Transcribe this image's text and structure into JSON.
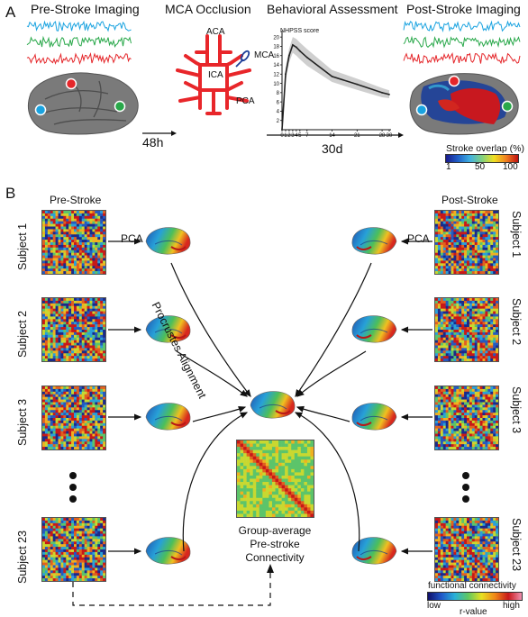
{
  "panel_a": {
    "letter": "A",
    "pre_title": "Pre-Stroke Imaging",
    "mca_title": "MCA Occlusion",
    "behav_title": "Behavioral Assessment",
    "post_title": "Post-Stroke Imaging",
    "delay_48h": "48h",
    "delay_30d": "30d",
    "vessels": {
      "aca": "ACA",
      "mca": "MCA",
      "ica": "ICA",
      "pca": "PCA"
    },
    "legend": {
      "title": "Stroke overlap (%)",
      "min": "1",
      "mid": "50",
      "max": "100"
    },
    "trace_colors": [
      "#1aa3e0",
      "#29a84a",
      "#e5262a"
    ]
  },
  "chart_data": {
    "type": "line",
    "ylabel": "NHPSS score",
    "x_ticks": [
      "0",
      "1",
      "2",
      "3",
      "4",
      "5",
      "7",
      "14",
      "21",
      "28",
      "30"
    ],
    "y_ticks": [
      "2",
      "4",
      "6",
      "8",
      "10",
      "12",
      "14",
      "16",
      "18",
      "20"
    ],
    "xlim": [
      0,
      30
    ],
    "ylim": [
      0,
      21
    ],
    "x": [
      0,
      1,
      2,
      3,
      4,
      5,
      7,
      14,
      21,
      28,
      30
    ],
    "y": [
      0,
      12,
      16,
      18.3,
      17.8,
      17,
      15.6,
      11.5,
      9.8,
      8.0,
      7.6
    ],
    "ci_low": [
      0,
      10.5,
      14.5,
      16.6,
      16.0,
      15.2,
      13.8,
      10.3,
      8.6,
      7.0,
      6.8
    ],
    "ci_high": [
      0,
      13.5,
      17.5,
      20.0,
      19.6,
      18.8,
      17.4,
      12.9,
      11.0,
      9.0,
      8.5
    ],
    "line_color": "#222222",
    "band_color": "#cfcfcf"
  },
  "panel_b": {
    "letter": "B",
    "pre_label": "Pre-Stroke",
    "post_label": "Post-Stroke",
    "pca_left": "PCA",
    "pca_right": "PCA",
    "procrustes": "Procrustes Alignment",
    "subjects": [
      "Subject 1",
      "Subject 2",
      "Subject 3",
      "Subject 23"
    ],
    "group_avg": [
      "Group-average",
      "Pre-stroke",
      "Connectivity"
    ],
    "fc_legend": {
      "title": "functional connectivity",
      "low": "low",
      "high": "high",
      "axis": "r-value"
    }
  }
}
